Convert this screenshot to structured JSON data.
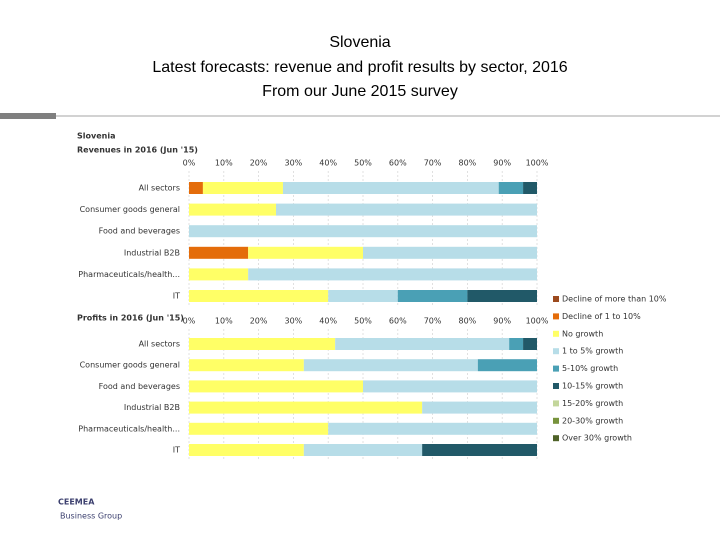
{
  "header": {
    "title": "Slovenia",
    "subtitle": "Latest forecasts: revenue and profit results by sector, 2016",
    "note": "From our June 2015 survey"
  },
  "logo": {
    "name": "CEEMEA",
    "tagline": "Business Group"
  },
  "chart_data": [
    {
      "type": "bar",
      "orientation": "horizontal",
      "stacked": true,
      "title": "Slovenia",
      "subtitle": "Revenues in 2016 (Jun '15)",
      "categories": [
        "All sectors",
        "Consumer goods general",
        "Food and beverages",
        "Industrial B2B",
        "Pharmaceuticals/health...",
        "IT"
      ],
      "xlim": [
        0,
        100
      ],
      "xticks": [
        {
          "value": 0,
          "label": "0%"
        },
        {
          "value": 10,
          "label": "10%"
        },
        {
          "value": 20,
          "label": "20%"
        },
        {
          "value": 30,
          "label": "30%"
        },
        {
          "value": 40,
          "label": "40%"
        },
        {
          "value": 50,
          "label": "50%"
        },
        {
          "value": 60,
          "label": "60%"
        },
        {
          "value": 70,
          "label": "70%"
        },
        {
          "value": 80,
          "label": "80%"
        },
        {
          "value": 90,
          "label": "90%"
        },
        {
          "value": 100,
          "label": "100%"
        }
      ],
      "grid": true,
      "legend": "right",
      "series": [
        {
          "name": "Decline of more than 10%",
          "color": "#9c4a1e",
          "values": [
            0,
            0,
            0,
            0,
            0,
            0
          ]
        },
        {
          "name": "Decline of 1 to 10%",
          "color": "#e46c0a",
          "values": [
            4,
            0,
            0,
            17,
            0,
            0
          ]
        },
        {
          "name": "No growth",
          "color": "#ffff66",
          "values": [
            23,
            25,
            0,
            33,
            17,
            40
          ]
        },
        {
          "name": "1 to 5% growth",
          "color": "#b7dde8",
          "values": [
            62,
            75,
            100,
            50,
            83,
            20
          ]
        },
        {
          "name": "5-10% growth",
          "color": "#4aa0b5",
          "values": [
            7,
            0,
            0,
            0,
            0,
            20
          ]
        },
        {
          "name": "10-15% growth",
          "color": "#215968",
          "values": [
            4,
            0,
            0,
            0,
            0,
            20
          ]
        },
        {
          "name": "15-20% growth",
          "color": "#c3d69b",
          "values": [
            0,
            0,
            0,
            0,
            0,
            0
          ]
        },
        {
          "name": "20-30% growth",
          "color": "#77933c",
          "values": [
            0,
            0,
            0,
            0,
            0,
            0
          ]
        },
        {
          "name": "Over 30% growth",
          "color": "#4f6228",
          "values": [
            0,
            0,
            0,
            0,
            0,
            0
          ]
        }
      ]
    },
    {
      "type": "bar",
      "orientation": "horizontal",
      "stacked": true,
      "title": "Profits in 2016 (Jun '15)",
      "categories": [
        "All sectors",
        "Consumer goods general",
        "Food and beverages",
        "Industrial B2B",
        "Pharmaceuticals/health...",
        "IT"
      ],
      "xlim": [
        0,
        100
      ],
      "xticks": [
        {
          "value": 0,
          "label": "0%"
        },
        {
          "value": 10,
          "label": "10%"
        },
        {
          "value": 20,
          "label": "20%"
        },
        {
          "value": 30,
          "label": "30%"
        },
        {
          "value": 40,
          "label": "40%"
        },
        {
          "value": 50,
          "label": "50%"
        },
        {
          "value": 60,
          "label": "60%"
        },
        {
          "value": 70,
          "label": "70%"
        },
        {
          "value": 80,
          "label": "80%"
        },
        {
          "value": 90,
          "label": "90%"
        },
        {
          "value": 100,
          "label": "100%"
        }
      ],
      "grid": true,
      "series": [
        {
          "color": "#9c4a1e",
          "values": [
            0,
            0,
            0,
            0,
            0,
            0
          ]
        },
        {
          "color": "#e46c0a",
          "values": [
            0,
            0,
            0,
            0,
            0,
            0
          ]
        },
        {
          "color": "#ffff66",
          "values": [
            42,
            33,
            50,
            67,
            40,
            33
          ]
        },
        {
          "color": "#b7dde8",
          "values": [
            50,
            50,
            50,
            33,
            60,
            34
          ]
        },
        {
          "color": "#4aa0b5",
          "values": [
            4,
            17,
            0,
            0,
            0,
            0
          ]
        },
        {
          "color": "#215968",
          "values": [
            4,
            0,
            0,
            0,
            0,
            33
          ]
        },
        {
          "color": "#c3d69b",
          "values": [
            0,
            0,
            0,
            0,
            0,
            0
          ]
        },
        {
          "color": "#77933c",
          "values": [
            0,
            0,
            0,
            0,
            0,
            0
          ]
        },
        {
          "color": "#4f6228",
          "values": [
            0,
            0,
            0,
            0,
            0,
            0
          ]
        }
      ]
    }
  ]
}
